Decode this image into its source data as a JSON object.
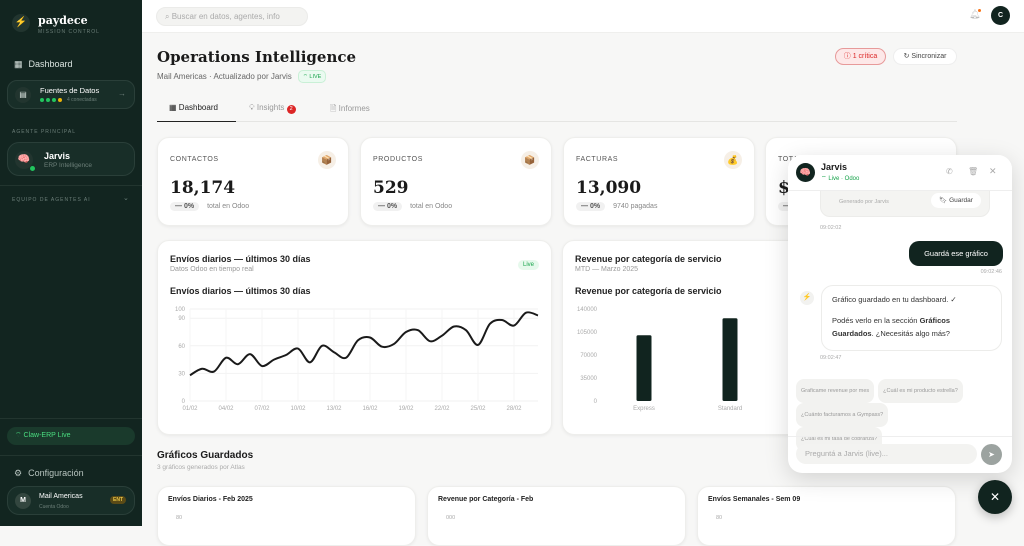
{
  "brand": {
    "name": "paydece",
    "subtitle": "MISSION CONTROL"
  },
  "sidebar": {
    "dashboard": "Dashboard",
    "sources": {
      "title": "Fuentes de Datos",
      "status": "4 conectadas",
      "dots": [
        "#22c55e",
        "#22c55e",
        "#22c55e",
        "#eab308"
      ]
    },
    "principal_label": "AGENTE PRINCIPAL",
    "agent": {
      "name": "Jarvis",
      "role": "ERP Intelligence"
    },
    "team_label": "EQUIPO DE AGENTES AI",
    "live": "Claw-ERP Live",
    "config": "Configuración",
    "account": {
      "initial": "M",
      "name": "Mail Americas",
      "sub": "Cuenta Odoo",
      "badge": "ENT"
    }
  },
  "header": {
    "search_placeholder": "Buscar en datos, agentes, info",
    "avatar": "C"
  },
  "page": {
    "title": "Operations Intelligence",
    "subtitle": "Mail Americas · Actualizado por Jarvis",
    "live": "LIVE",
    "critical": "1 crítica",
    "sync": "Sincronizar"
  },
  "tabs": [
    {
      "label": "Dashboard"
    },
    {
      "label": "Insights",
      "badge": "2"
    },
    {
      "label": "Informes"
    }
  ],
  "kpis": [
    {
      "label": "CONTACTOS",
      "value": "18,174",
      "delta": "— 0%",
      "note": "total en Odoo",
      "icon": "📦"
    },
    {
      "label": "PRODUCTOS",
      "value": "529",
      "delta": "— 0%",
      "note": "total en Odoo",
      "icon": "📦"
    },
    {
      "label": "FACTURAS",
      "value": "13,090",
      "delta": "— 0%",
      "note": "9740 pagadas",
      "icon": "💰"
    },
    {
      "label": "TOTA",
      "value": "$",
      "delta": "—",
      "note": "",
      "icon": ""
    }
  ],
  "chart_data": [
    {
      "type": "line",
      "card_title": "Envíos diarios — últimos 30 días",
      "card_subtitle": "Datos Odoo en tiempo real",
      "badge": "Live",
      "title": "Envíos diarios — últimos 30 días",
      "x": [
        "01/02",
        "02/02",
        "03/02",
        "04/02",
        "05/02",
        "06/02",
        "07/02",
        "08/02",
        "09/02",
        "10/02",
        "11/02",
        "12/02",
        "13/02",
        "14/02",
        "15/02",
        "16/02",
        "17/02",
        "18/02",
        "19/02",
        "20/02",
        "21/02",
        "22/02",
        "23/02",
        "24/02",
        "25/02",
        "26/02",
        "27/02",
        "28/02",
        "01/03",
        "02/03"
      ],
      "xticks": [
        "01/02",
        "04/02",
        "07/02",
        "10/02",
        "13/02",
        "16/02",
        "19/02",
        "22/02",
        "25/02",
        "28/02"
      ],
      "values": [
        28,
        35,
        32,
        47,
        40,
        51,
        38,
        45,
        50,
        57,
        42,
        60,
        53,
        47,
        66,
        69,
        59,
        62,
        75,
        77,
        65,
        71,
        81,
        77,
        61,
        84,
        88,
        82,
        96,
        93
      ],
      "ylim": [
        0,
        100
      ],
      "yticks": [
        0,
        30,
        60,
        90,
        100
      ],
      "grid": true
    },
    {
      "type": "bar",
      "card_title": "Revenue por categoría de servicio",
      "card_subtitle": "MTD — Marzo 2025",
      "title": "Revenue por categoría de servicio",
      "categories": [
        "Express",
        "Standard"
      ],
      "values": [
        100000,
        126000
      ],
      "ylim": [
        0,
        140000
      ],
      "yticks": [
        0,
        35000,
        70000,
        105000,
        140000
      ],
      "color": "#11241f"
    }
  ],
  "saved": {
    "title": "Gráficos Guardados",
    "subtitle": "3 gráficos generados por Atlas",
    "cards": [
      {
        "title": "Envíos Diarios - Feb 2025",
        "tick": "80"
      },
      {
        "title": "Revenue por Categoría - Feb",
        "tick": "000"
      },
      {
        "title": "Envíos Semanales - Sem 09",
        "tick": "80"
      }
    ]
  },
  "chat": {
    "name": "Jarvis",
    "status": "Live · Odoo",
    "generated": "Generado por Jarvis",
    "save": "Guardar",
    "t1": "09:02:02",
    "user_msg": "Guardá ese gráfico",
    "t2": "09:02:46",
    "bot_line1": "Gráfico guardado en tu dashboard. ✓",
    "bot_line2a": "Podés verlo en la sección ",
    "bot_bold": "Gráficos Guardados",
    "bot_line2b": ". ¿Necesitás algo más?",
    "t3": "09:02:47",
    "suggestions": [
      "Graficame revenue por mes",
      "¿Cuál es mi producto estrella?",
      "¿Cuánto facturamos a Gympass?",
      "¿Cuál es mi tasa de cobranza?"
    ],
    "placeholder": "Preguntá a Jarvis (live)..."
  },
  "colors": {
    "sidebar": "#122520",
    "accent": "#11241f",
    "live": "#22c55e",
    "critical": "#dc2626"
  }
}
